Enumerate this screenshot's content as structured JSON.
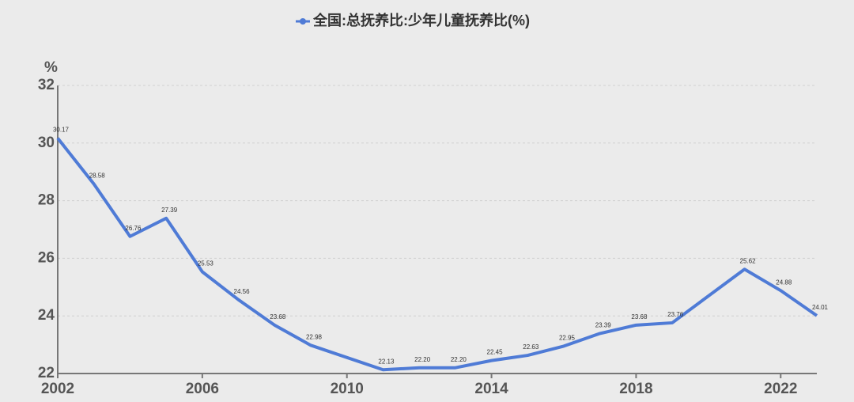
{
  "chart_data": {
    "type": "line",
    "y_label": "%",
    "x": [
      2002,
      2003,
      2004,
      2005,
      2006,
      2007,
      2008,
      2009,
      2011,
      2012,
      2013,
      2014,
      2015,
      2016,
      2017,
      2018,
      2019,
      2021,
      2022,
      2023
    ],
    "series": [
      {
        "name": "全国:总抚养比:少年儿童抚养比(%)",
        "color": "#4f7bd6",
        "values": [
          30.17,
          28.58,
          26.76,
          27.39,
          25.53,
          24.56,
          23.68,
          22.98,
          22.13,
          22.2,
          22.2,
          22.45,
          22.63,
          22.95,
          23.39,
          23.68,
          23.76,
          25.62,
          24.88,
          24.01
        ],
        "value_labels": [
          "30.17",
          "28.58",
          "26.76",
          "27.39",
          "25.53",
          "24.56",
          "23.68",
          "22.98",
          "22.13",
          "22.20",
          "22.20",
          "22.45",
          "22.63",
          "22.95",
          "23.39",
          "23.68",
          "23.76",
          "25.62",
          "24.88",
          "24.01"
        ]
      }
    ],
    "xlim": [
      2002,
      2023
    ],
    "xticks": [
      2002,
      2006,
      2010,
      2014,
      2018,
      2022
    ],
    "ylim": [
      22,
      32
    ],
    "yticks": [
      22,
      24,
      26,
      28,
      30,
      32
    ],
    "grid": true,
    "legend": "top"
  }
}
